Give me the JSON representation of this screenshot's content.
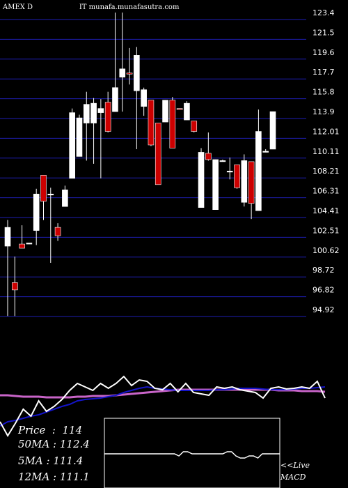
{
  "header": {
    "symbol_text": "AMEX  D",
    "ticker_text": "IT",
    "site_text": "munafa.munafasutra.com"
  },
  "colors": {
    "background": "#000000",
    "grid": "#1e1eb4",
    "up_candle": "#ffffff",
    "down_candle": "#cc0000",
    "price_line": "#ffffff",
    "ma_short": "#1414c8",
    "ma_long": "#c864c8",
    "macd_box": "#ffffff"
  },
  "chart_data": {
    "type": "candlestick",
    "y_ticks": [
      "123.4",
      "121.5",
      "119.6",
      "117.7",
      "115.8",
      "113.9",
      "112.01",
      "110.11",
      "108.21",
      "106.31",
      "104.41",
      "102.51",
      "100.62",
      "98.72",
      "96.82",
      "94.92"
    ],
    "ylim": [
      94.92,
      123.4
    ],
    "candles": [
      {
        "o": 101.0,
        "h": 103.5,
        "l": 94.3,
        "c": 102.8
      },
      {
        "o": 97.5,
        "h": 100.0,
        "l": 94.3,
        "c": 96.8
      },
      {
        "o": 101.2,
        "h": 103.0,
        "l": 100.8,
        "c": 100.8
      },
      {
        "o": 101.3,
        "h": 101.3,
        "l": 101.3,
        "c": 101.3
      },
      {
        "o": 102.5,
        "h": 106.5,
        "l": 101.1,
        "c": 106.0
      },
      {
        "o": 107.8,
        "h": 107.8,
        "l": 103.5,
        "c": 105.3
      },
      {
        "o": 106.0,
        "h": 106.6,
        "l": 99.4,
        "c": 106.0
      },
      {
        "o": 102.8,
        "h": 103.2,
        "l": 101.5,
        "c": 102.0
      },
      {
        "o": 104.8,
        "h": 106.8,
        "l": 104.8,
        "c": 106.4
      },
      {
        "o": 107.5,
        "h": 114.2,
        "l": 107.5,
        "c": 113.8
      },
      {
        "o": 109.6,
        "h": 113.6,
        "l": 109.6,
        "c": 113.3
      },
      {
        "o": 112.8,
        "h": 115.8,
        "l": 109.2,
        "c": 114.6
      },
      {
        "o": 112.8,
        "h": 115.2,
        "l": 108.9,
        "c": 114.7
      },
      {
        "o": 113.8,
        "h": 115.1,
        "l": 107.5,
        "c": 114.2
      },
      {
        "o": 114.8,
        "h": 115.8,
        "l": 111.9,
        "c": 112.0
      },
      {
        "o": 113.9,
        "h": 123.4,
        "l": 113.9,
        "c": 116.2
      },
      {
        "o": 117.2,
        "h": 123.4,
        "l": 113.9,
        "c": 118.0
      },
      {
        "o": 117.6,
        "h": 120.0,
        "l": 116.5,
        "c": 117.5
      },
      {
        "o": 115.9,
        "h": 120.1,
        "l": 110.3,
        "c": 119.3
      },
      {
        "o": 114.4,
        "h": 116.2,
        "l": 113.5,
        "c": 116.0
      },
      {
        "o": 115.0,
        "h": 115.0,
        "l": 110.6,
        "c": 110.7
      },
      {
        "o": 112.8,
        "h": 112.8,
        "l": 106.9,
        "c": 106.9
      },
      {
        "o": 112.9,
        "h": 115.0,
        "l": 112.9,
        "c": 115.0
      },
      {
        "o": 115.0,
        "h": 115.3,
        "l": 110.4,
        "c": 110.4
      },
      {
        "o": 114.2,
        "h": 114.2,
        "l": 114.1,
        "c": 114.1
      },
      {
        "o": 113.1,
        "h": 114.9,
        "l": 113.1,
        "c": 114.7
      },
      {
        "o": 113.0,
        "h": 113.0,
        "l": 111.9,
        "c": 112.0
      },
      {
        "o": 104.7,
        "h": 110.4,
        "l": 104.7,
        "c": 110.0
      },
      {
        "o": 109.9,
        "h": 111.9,
        "l": 109.2,
        "c": 109.3
      },
      {
        "o": 104.5,
        "h": 109.3,
        "l": 104.5,
        "c": 109.3
      },
      {
        "o": 109.2,
        "h": 109.3,
        "l": 109.1,
        "c": 109.2
      },
      {
        "o": 108.2,
        "h": 109.5,
        "l": 107.4,
        "c": 108.2
      },
      {
        "o": 108.8,
        "h": 108.8,
        "l": 106.5,
        "c": 106.6
      },
      {
        "o": 105.2,
        "h": 109.8,
        "l": 104.8,
        "c": 109.2
      },
      {
        "o": 109.1,
        "h": 109.1,
        "l": 103.6,
        "c": 105.1
      },
      {
        "o": 104.4,
        "h": 114.1,
        "l": 104.4,
        "c": 112.0
      },
      {
        "o": 110.1,
        "h": 110.3,
        "l": 110.0,
        "c": 110.1
      },
      {
        "o": 110.3,
        "h": 113.9,
        "l": 110.3,
        "c": 113.9
      }
    ]
  },
  "indicators": {
    "price": [
      -60,
      -80,
      -62,
      -42,
      -52,
      -30,
      -45,
      -38,
      -28,
      -15,
      -5,
      -10,
      -15,
      -5,
      -12,
      -5,
      5,
      -8,
      0,
      -2,
      -12,
      -14,
      -5,
      -17,
      -5,
      -18,
      -20,
      -22,
      -10,
      -12,
      -10,
      -14,
      -16,
      -18,
      -26,
      -12,
      -10,
      -13,
      -12,
      -10,
      -12,
      -2,
      -26
    ],
    "ma_short": [
      -66,
      -60,
      -58,
      -55,
      -52,
      -50,
      -46,
      -42,
      -38,
      -35,
      -30,
      -28,
      -27,
      -26,
      -24,
      -22,
      -18,
      -15,
      -12,
      -10,
      -12,
      -13,
      -14,
      -15,
      -15,
      -15,
      -15,
      -15,
      -14,
      -14,
      -13,
      -12,
      -12,
      -12,
      -13,
      -14,
      -14,
      -14,
      -13,
      -12,
      -12,
      -11,
      -10
    ],
    "ma_long": [
      -22,
      -22,
      -23,
      -24,
      -24,
      -24,
      -25,
      -25,
      -25,
      -25,
      -24,
      -24,
      -23,
      -23,
      -23,
      -22,
      -21,
      -20,
      -19,
      -18,
      -17,
      -16,
      -15,
      -14,
      -14,
      -14,
      -14,
      -14,
      -14,
      -14,
      -14,
      -14,
      -14,
      -14,
      -14,
      -14,
      -15,
      -15,
      -15,
      -16,
      -16,
      -16,
      -17
    ],
    "macd": [
      0,
      0,
      0,
      0,
      0,
      0,
      0,
      0,
      0,
      0,
      0,
      0,
      0,
      0,
      0,
      0,
      0,
      -1,
      1,
      1,
      0,
      0,
      0,
      0,
      0,
      0,
      0,
      0,
      1,
      1,
      -1,
      -2,
      -2,
      -1,
      -1,
      -2,
      0,
      0,
      0,
      0,
      0
    ]
  },
  "info": {
    "price_label": "Price",
    "price_value": "114",
    "ma50_label": "50MA",
    "ma50_value": "112.4",
    "ma5_label": "5MA",
    "ma5_value": "111.4",
    "ma12_label": "12MA",
    "ma12_value": "111.1"
  },
  "macd_panel": {
    "live_label": "<<Live",
    "macd_label": "MACD"
  }
}
